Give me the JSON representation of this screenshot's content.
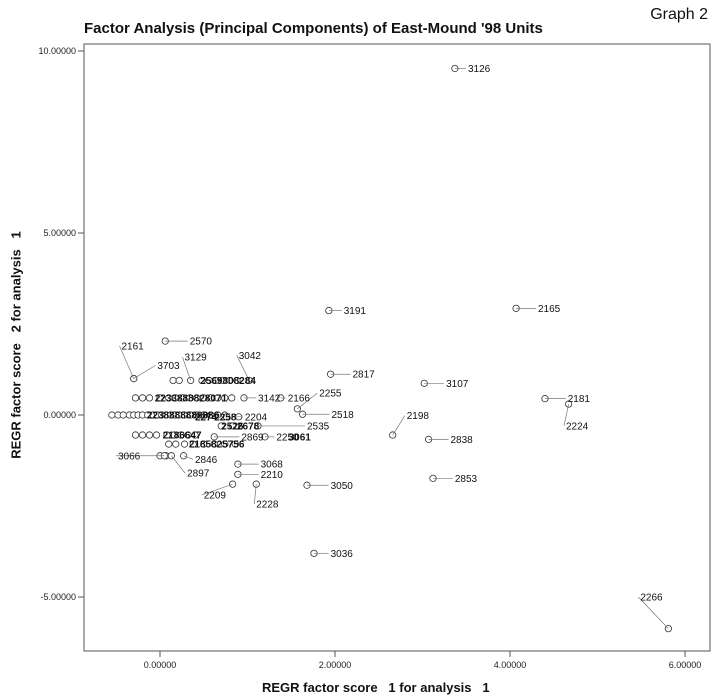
{
  "page": {
    "graph_tag": "Graph 2"
  },
  "chart_data": {
    "type": "scatter",
    "title": "Factor Analysis (Principal Components) of East-Mound '98 Units",
    "xlabel": "REGR factor score   1 for analysis   1",
    "ylabel": "REGR factor score   2 for analysis   1",
    "xlim": [
      -1.9,
      6.1
    ],
    "ylim": [
      -6.4,
      10.3
    ],
    "xticks": [
      0,
      2,
      4,
      6
    ],
    "xtick_labels": [
      "0.00000",
      "2.00000",
      "4.00000",
      "6.00000"
    ],
    "yticks": [
      -5,
      0,
      5,
      10
    ],
    "ytick_labels": [
      "-5.00000",
      "0.00000",
      "5.00000",
      "10.00000"
    ],
    "grid": false,
    "labeled_points": [
      {
        "label": "3126",
        "x": 3.37,
        "y": 9.52,
        "lx": 3.52,
        "ly": 9.52
      },
      {
        "label": "3191",
        "x": 1.93,
        "y": 2.87,
        "lx": 2.1,
        "ly": 2.87
      },
      {
        "label": "2165",
        "x": 4.07,
        "y": 2.93,
        "lx": 4.32,
        "ly": 2.93
      },
      {
        "label": "2570",
        "x": 0.06,
        "y": 2.03,
        "lx": 0.34,
        "ly": 2.03
      },
      {
        "label": "2161",
        "x": -0.3,
        "y": 1.0,
        "lx": -0.44,
        "ly": 1.9
      },
      {
        "label": "3703",
        "x": -0.3,
        "y": 1.0,
        "lx": -0.03,
        "ly": 1.36
      },
      {
        "label": "3129",
        "x": 0.35,
        "y": 0.95,
        "lx": 0.28,
        "ly": 1.59
      },
      {
        "label": "3042",
        "x": 1.02,
        "y": 0.95,
        "lx": 0.9,
        "ly": 1.64
      },
      {
        "label": "2817",
        "x": 1.95,
        "y": 1.12,
        "lx": 2.2,
        "ly": 1.12
      },
      {
        "label": "3107",
        "x": 3.02,
        "y": 0.87,
        "lx": 3.27,
        "ly": 0.87
      },
      {
        "label": "2255",
        "x": 1.57,
        "y": 0.17,
        "lx": 1.82,
        "ly": 0.6
      },
      {
        "label": "2181",
        "x": 4.4,
        "y": 0.45,
        "lx": 4.66,
        "ly": 0.45
      },
      {
        "label": "2224",
        "x": 4.67,
        "y": 0.3,
        "lx": 4.64,
        "ly": -0.3
      },
      {
        "label": "3142",
        "x": 0.96,
        "y": 0.47,
        "lx": 1.12,
        "ly": 0.47
      },
      {
        "label": "2166",
        "x": 1.38,
        "y": 0.47,
        "lx": 1.46,
        "ly": 0.47
      },
      {
        "label": "2518",
        "x": 1.63,
        "y": 0.02,
        "lx": 1.96,
        "ly": 0.02
      },
      {
        "label": "2198",
        "x": 2.66,
        "y": -0.55,
        "lx": 2.82,
        "ly": -0.02
      },
      {
        "label": "2204",
        "x": 0.76,
        "y": -0.05,
        "lx": 0.97,
        "ly": -0.05
      },
      {
        "label": "2838",
        "x": 3.07,
        "y": -0.67,
        "lx": 3.32,
        "ly": -0.67
      },
      {
        "label": "2535",
        "x": 1.12,
        "y": -0.3,
        "lx": 1.68,
        "ly": -0.3
      },
      {
        "label": "2869",
        "x": 0.62,
        "y": -0.6,
        "lx": 0.93,
        "ly": -0.6
      },
      {
        "label": "2250",
        "x": 1.2,
        "y": -0.6,
        "lx": 1.33,
        "ly": -0.6
      },
      {
        "label": "3068",
        "x": 0.89,
        "y": -1.35,
        "lx": 1.15,
        "ly": -1.35
      },
      {
        "label": "2210",
        "x": 0.89,
        "y": -1.63,
        "lx": 1.15,
        "ly": -1.63
      },
      {
        "label": "3066",
        "x": 0.05,
        "y": -1.12,
        "lx": -0.48,
        "ly": -1.12
      },
      {
        "label": "2846",
        "x": 0.27,
        "y": -1.12,
        "lx": 0.4,
        "ly": -1.22
      },
      {
        "label": "2897",
        "x": 0.13,
        "y": -1.12,
        "lx": 0.31,
        "ly": -1.6
      },
      {
        "label": "2209",
        "x": 0.83,
        "y": -1.9,
        "lx": 0.5,
        "ly": -2.2
      },
      {
        "label": "2228",
        "x": 1.1,
        "y": -1.9,
        "lx": 1.1,
        "ly": -2.45
      },
      {
        "label": "2853",
        "x": 3.12,
        "y": -1.74,
        "lx": 3.37,
        "ly": -1.74
      },
      {
        "label": "3050",
        "x": 1.68,
        "y": -1.93,
        "lx": 1.95,
        "ly": -1.93
      },
      {
        "label": "3036",
        "x": 1.76,
        "y": -3.8,
        "lx": 1.95,
        "ly": -3.8
      },
      {
        "label": "2266",
        "x": 5.81,
        "y": -5.87,
        "lx": 5.49,
        "ly": -5.0
      }
    ],
    "cluster_points": [
      [
        -0.55,
        0.0
      ],
      [
        -0.48,
        0.0
      ],
      [
        -0.42,
        0.0
      ],
      [
        -0.35,
        0.0
      ],
      [
        -0.3,
        0.0
      ],
      [
        -0.25,
        0.0
      ],
      [
        -0.2,
        0.0
      ],
      [
        -0.14,
        0.0
      ],
      [
        -0.08,
        0.0
      ],
      [
        -0.03,
        0.0
      ],
      [
        0.02,
        0.0
      ],
      [
        0.07,
        0.0
      ],
      [
        0.12,
        0.0
      ],
      [
        0.17,
        0.0
      ],
      [
        0.22,
        0.0
      ],
      [
        0.28,
        0.0
      ],
      [
        0.35,
        0.0
      ],
      [
        0.42,
        0.0
      ],
      [
        0.5,
        0.0
      ],
      [
        0.58,
        0.0
      ],
      [
        0.66,
        0.0
      ],
      [
        0.74,
        0.0
      ],
      [
        -0.28,
        0.47
      ],
      [
        -0.2,
        0.47
      ],
      [
        -0.12,
        0.47
      ],
      [
        0.0,
        0.47
      ],
      [
        0.1,
        0.47
      ],
      [
        0.18,
        0.47
      ],
      [
        0.26,
        0.47
      ],
      [
        0.34,
        0.47
      ],
      [
        0.42,
        0.47
      ],
      [
        0.5,
        0.47
      ],
      [
        0.58,
        0.47
      ],
      [
        0.66,
        0.47
      ],
      [
        0.74,
        0.47
      ],
      [
        0.82,
        0.47
      ],
      [
        0.15,
        0.95
      ],
      [
        0.22,
        0.95
      ],
      [
        0.48,
        0.95
      ],
      [
        0.56,
        0.95
      ],
      [
        0.64,
        0.95
      ],
      [
        0.72,
        0.95
      ],
      [
        0.8,
        0.95
      ],
      [
        0.88,
        0.95
      ],
      [
        -0.28,
        -0.55
      ],
      [
        -0.2,
        -0.55
      ],
      [
        -0.12,
        -0.55
      ],
      [
        -0.04,
        -0.55
      ],
      [
        0.08,
        -0.55
      ],
      [
        0.16,
        -0.55
      ],
      [
        0.24,
        -0.55
      ],
      [
        0.32,
        -0.55
      ],
      [
        0.4,
        -0.55
      ],
      [
        0.1,
        -0.8
      ],
      [
        0.18,
        -0.8
      ],
      [
        0.28,
        -0.8
      ],
      [
        0.38,
        -0.8
      ],
      [
        0.5,
        -0.8
      ],
      [
        0.62,
        -0.8
      ],
      [
        0.74,
        -0.8
      ],
      [
        0.86,
        -0.8
      ],
      [
        0.0,
        -1.12
      ],
      [
        0.07,
        -1.12
      ],
      [
        0.9,
        -0.05
      ],
      [
        0.7,
        -0.3
      ],
      [
        0.83,
        -0.3
      ]
    ],
    "cluster_labels": [
      {
        "text": "2238888888886",
        "x": -0.15,
        "y": 0.0
      },
      {
        "text": "2233888828071",
        "x": -0.06,
        "y": 0.47
      },
      {
        "text": "2569808284",
        "x": 0.46,
        "y": 0.95
      },
      {
        "text": "2186647",
        "x": 0.03,
        "y": -0.55
      },
      {
        "text": "2185825756",
        "x": 0.33,
        "y": -0.8
      },
      {
        "text": "2274",
        "x": 0.4,
        "y": -0.05
      },
      {
        "text": "2258",
        "x": 0.62,
        "y": -0.05
      },
      {
        "text": "2526",
        "x": 0.7,
        "y": -0.3
      },
      {
        "text": "2678",
        "x": 0.88,
        "y": -0.3
      },
      {
        "text": "3061",
        "x": 1.47,
        "y": -0.6
      }
    ]
  }
}
